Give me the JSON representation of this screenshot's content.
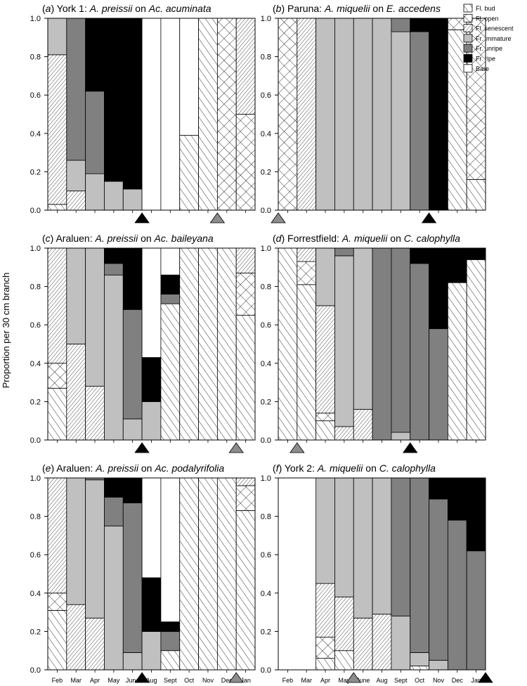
{
  "chart_data": {
    "type": "bar",
    "stacked": true,
    "ylabel": "Proportion per 30 cm branch",
    "ylim": [
      0,
      1
    ],
    "yticks": [
      "0.0",
      "0.2",
      "0.4",
      "0.6",
      "0.8",
      "1.0"
    ],
    "months": [
      "Feb",
      "Mar",
      "Apr",
      "May",
      "June",
      "Aug",
      "Sept",
      "Oct",
      "Nov",
      "Dec",
      "Jan"
    ],
    "stages": [
      {
        "key": "bud",
        "label": "Fl. bud",
        "fill": "hatch-fwd"
      },
      {
        "key": "open",
        "label": "Fl. open",
        "fill": "crosshatch"
      },
      {
        "key": "sen",
        "label": "Fl. senescent",
        "fill": "hatch-back"
      },
      {
        "key": "imm",
        "label": "Fr. immature",
        "fill": "#c0c0c0"
      },
      {
        "key": "unr",
        "label": "Fr. unripe",
        "fill": "#808080"
      },
      {
        "key": "ripe",
        "label": "Fr. ripe",
        "fill": "#000000"
      },
      {
        "key": "bare",
        "label": "Bare",
        "fill": "#ffffff"
      }
    ],
    "arrow_colors": {
      "black": "#000000",
      "grey": "#8c8c8c"
    },
    "panels": [
      {
        "letter": "(a)",
        "site": "York 1:",
        "mistletoe": "A. preissii",
        "on": "on",
        "host": "Ac. acuminata",
        "bars": [
          {
            "bud": 0.03,
            "sen": 0.78,
            "imm": 0.19
          },
          {
            "sen": 0.1,
            "imm": 0.16,
            "unr": 0.74
          },
          {
            "imm": 0.19,
            "unr": 0.43,
            "ripe": 0.38
          },
          {
            "imm": 0.15,
            "ripe": 0.85
          },
          {
            "imm": 0.11,
            "ripe": 0.89
          },
          {
            "bare": 1.0
          },
          {
            "bare": 1.0
          },
          {
            "bud": 0.39,
            "bare": 0.61
          },
          {
            "bud": 1.0
          },
          {
            "open": 1.0
          },
          {
            "open": 0.5,
            "sen": 0.5
          }
        ],
        "arrows": [
          {
            "at": 4.5,
            "color": "black"
          },
          {
            "at": 8.5,
            "color": "grey"
          }
        ]
      },
      {
        "letter": "(b)",
        "site": "Paruna:",
        "mistletoe": "A. miquelii",
        "on": "on",
        "host": "E. accedens",
        "bars": [
          {
            "open": 1.0
          },
          {
            "sen": 1.0
          },
          {
            "imm": 1.0
          },
          {
            "imm": 1.0
          },
          {
            "imm": 1.0
          },
          {
            "imm": 1.0
          },
          {
            "imm": 0.93,
            "unr": 0.07
          },
          {
            "unr": 0.93,
            "ripe": 0.07
          },
          {
            "ripe": 1.0
          },
          {
            "bud": 0.94,
            "open": 0.06
          },
          {
            "bud": 0.16,
            "open": 0.84
          }
        ],
        "arrows": [
          {
            "at": -0.5,
            "color": "grey"
          },
          {
            "at": 7.5,
            "color": "black"
          }
        ]
      },
      {
        "letter": "(c)",
        "site": "Araluen:",
        "mistletoe": "A. preissii",
        "on": "on",
        "host": "Ac. baileyana",
        "bars": [
          {
            "bud": 0.27,
            "open": 0.13,
            "sen": 0.6
          },
          {
            "sen": 0.5,
            "imm": 0.5
          },
          {
            "sen": 0.28,
            "imm": 0.72
          },
          {
            "imm": 0.86,
            "unr": 0.06,
            "ripe": 0.08
          },
          {
            "imm": 0.11,
            "unr": 0.57,
            "ripe": 0.32
          },
          {
            "imm": 0.2,
            "ripe": 0.23,
            "bare": 0.57
          },
          {
            "bud": 0.71,
            "unr": 0.05,
            "ripe": 0.1,
            "bare": 0.14
          },
          {
            "bud": 1.0
          },
          {
            "bud": 1.0
          },
          {
            "bud": 1.0
          },
          {
            "bud": 0.65,
            "open": 0.22,
            "sen": 0.13
          }
        ],
        "arrows": [
          {
            "at": 4.5,
            "color": "black"
          },
          {
            "at": 9.5,
            "color": "grey"
          }
        ]
      },
      {
        "letter": "(d)",
        "site": "Forrestfield:",
        "mistletoe": "A. miquelii",
        "on": "on",
        "host": "C. calophylla",
        "bars": [
          {
            "bud": 1.0
          },
          {
            "bud": 0.81,
            "open": 0.12,
            "sen": 0.07
          },
          {
            "bud": 0.1,
            "open": 0.04,
            "sen": 0.56,
            "imm": 0.3
          },
          {
            "sen": 0.07,
            "imm": 0.89,
            "unr": 0.04
          },
          {
            "sen": 0.16,
            "imm": 0.84
          },
          {
            "unr": 1.0
          },
          {
            "imm": 0.04,
            "unr": 0.96
          },
          {
            "unr": 0.92,
            "ripe": 0.08
          },
          {
            "unr": 0.58,
            "ripe": 0.42
          },
          {
            "bud": 0.82,
            "ripe": 0.18
          },
          {
            "bud": 0.94,
            "ripe": 0.06
          }
        ],
        "arrows": [
          {
            "at": 0.5,
            "color": "grey"
          },
          {
            "at": 6.5,
            "color": "black"
          }
        ]
      },
      {
        "letter": "(e)",
        "site": "Araluen:",
        "mistletoe": "A. preissii",
        "on": "on",
        "host": "Ac. podalyrifolia",
        "bars": [
          {
            "bud": 0.31,
            "open": 0.09,
            "sen": 0.6
          },
          {
            "sen": 0.34,
            "imm": 0.66
          },
          {
            "sen": 0.27,
            "imm": 0.72,
            "unr": 0.01
          },
          {
            "imm": 0.75,
            "unr": 0.15,
            "ripe": 0.1
          },
          {
            "imm": 0.09,
            "unr": 0.78,
            "ripe": 0.13
          },
          {
            "imm": 0.2,
            "ripe": 0.28,
            "bare": 0.52
          },
          {
            "bud": 0.1,
            "unr": 0.1,
            "ripe": 0.05,
            "bare": 0.75
          },
          {
            "bud": 1.0
          },
          {
            "bud": 1.0
          },
          {
            "bud": 1.0
          },
          {
            "bud": 0.83,
            "open": 0.13,
            "sen": 0.04
          }
        ],
        "arrows": [
          {
            "at": 4.5,
            "color": "black"
          },
          {
            "at": 9.5,
            "color": "grey"
          }
        ]
      },
      {
        "letter": "(f)",
        "site": "York 2:",
        "mistletoe": "A. miquelii",
        "on": "on",
        "host": "C. calophylla",
        "bars": [
          {},
          {},
          {
            "bud": 0.06,
            "open": 0.11,
            "sen": 0.28,
            "imm": 0.55
          },
          {
            "bud": 0.1,
            "sen": 0.28,
            "imm": 0.62
          },
          {
            "sen": 0.27,
            "imm": 0.73
          },
          {
            "sen": 0.29,
            "imm": 0.71
          },
          {
            "imm": 0.28,
            "unr": 0.72
          },
          {
            "bud": 0.02,
            "imm": 0.07,
            "unr": 0.91
          },
          {
            "imm": 0.05,
            "unr": 0.84,
            "ripe": 0.11
          },
          {
            "unr": 0.78,
            "ripe": 0.22
          },
          {
            "unr": 0.62,
            "ripe": 0.38
          }
        ],
        "arrows": [
          {
            "at": 3.5,
            "color": "grey"
          },
          {
            "at": 10.5,
            "color": "black"
          }
        ]
      }
    ]
  }
}
